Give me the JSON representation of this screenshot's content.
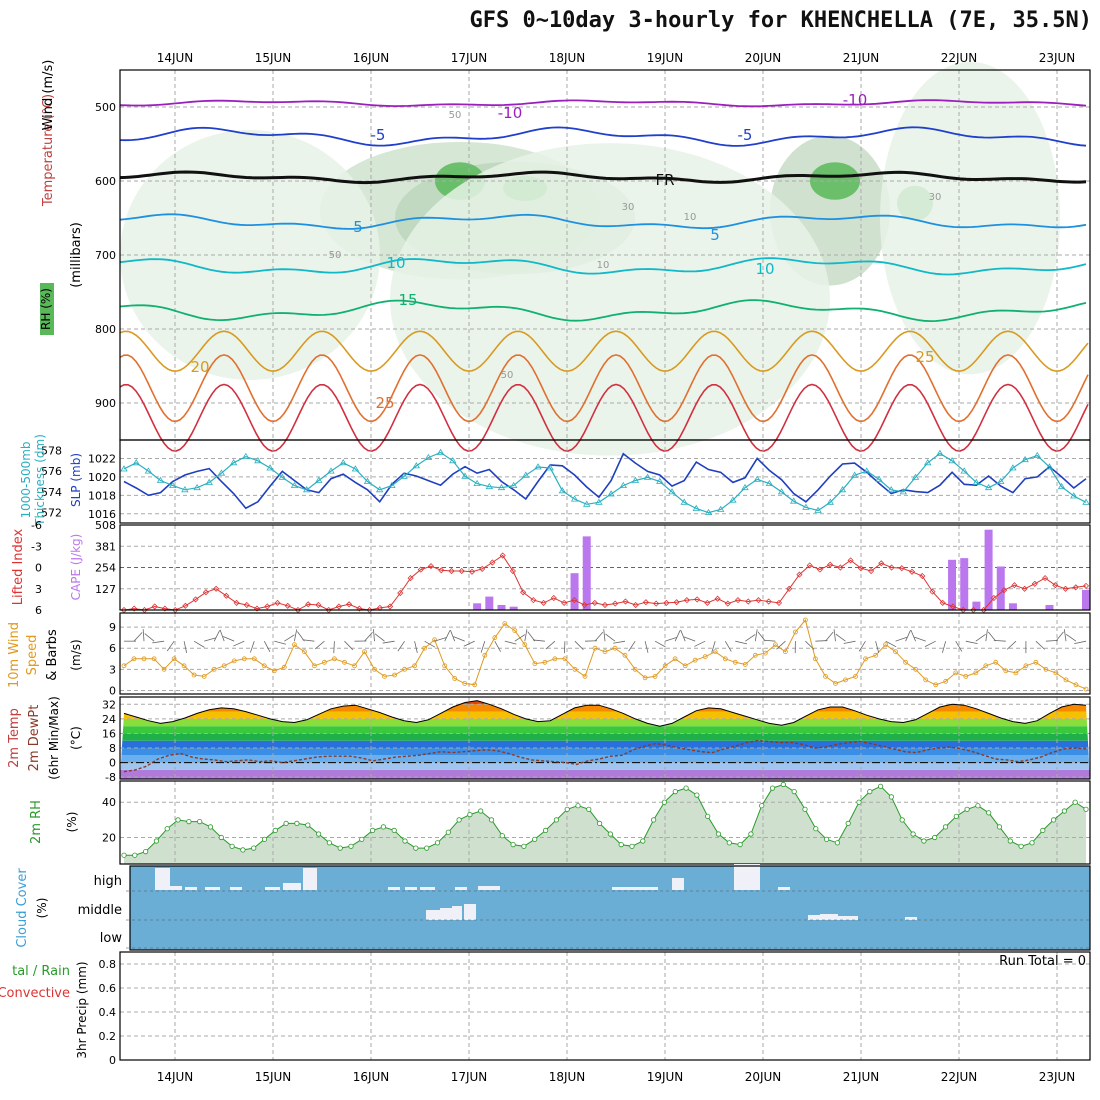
{
  "title": "GFS 0~10day 3-hourly for KHENCHELLA (7E, 35.5N)",
  "dates": [
    "14JUN",
    "15JUN",
    "16JUN",
    "17JUN",
    "18JUN",
    "19JUN",
    "20JUN",
    "21JUN",
    "22JUN",
    "23JUN"
  ],
  "colors": {
    "grid": "#aaaaaa",
    "rh_green": "#59b959",
    "rh_light": "#e6f2e6",
    "slp": "#1f3fbf",
    "thickness": "#2ab0c0",
    "lifted_index": "#dd3333",
    "cape": "#bb77ee",
    "wind_speed": "#e09a20",
    "rh2m": "#2a9a2a",
    "cloud_bg": "#6aaed6",
    "cloud_fill": "#f0f0f8"
  },
  "chart_data": [
    {
      "panel": "upper-air",
      "type": "contour",
      "ylabel": [
        "Temperature (°C)",
        "Wind (m/s)",
        "RH (%)",
        "(millibars)"
      ],
      "yticks": [
        500,
        600,
        700,
        800,
        900
      ],
      "ylim": [
        450,
        950
      ],
      "contour_labels": [
        "-10",
        "-10",
        "-5",
        "-5",
        "FR",
        "5",
        "5",
        "10",
        "10",
        "15",
        "20",
        "25",
        "25",
        "50",
        "50",
        "30",
        "30",
        "10",
        "10",
        "50"
      ],
      "isotherms": [
        {
          "name": "-10",
          "color": "#9b1fbf",
          "mean_level": 495,
          "amp": 5,
          "phase": 0
        },
        {
          "name": "-5",
          "color": "#2040cc",
          "mean_level": 540,
          "amp": 14,
          "phase": 1
        },
        {
          "name": "FR",
          "color": "#111111",
          "mean_level": 595,
          "amp": 8,
          "phase": 2
        },
        {
          "name": "5",
          "color": "#1e90e0",
          "mean_level": 655,
          "amp": 12,
          "phase": 3
        },
        {
          "name": "10",
          "color": "#10b8c8",
          "mean_level": 715,
          "amp": 14,
          "phase": 4
        },
        {
          "name": "15",
          "color": "#10b070",
          "mean_level": 775,
          "amp": 16,
          "phase": 5
        }
      ]
    },
    {
      "panel": "slp-thickness",
      "type": "line",
      "ylabel_left": [
        "1000-500mb",
        "Thickness (dm)"
      ],
      "ylabel_right": "SLP (mb)",
      "yticks_left": [
        572,
        574,
        576,
        578
      ],
      "yticks_right": [
        1016,
        1018,
        1020,
        1022
      ],
      "ylim_right": [
        1015,
        1024
      ],
      "ylim_left": [
        571,
        579
      ],
      "x": [
        0,
        1,
        2,
        3,
        4,
        5,
        6,
        7,
        8,
        9,
        10,
        11,
        12,
        13,
        14,
        15,
        16,
        17,
        18,
        19,
        20,
        21,
        22,
        23,
        24,
        25,
        26,
        27,
        28,
        29,
        30,
        31,
        32,
        33,
        34,
        35,
        36,
        37,
        38,
        39,
        40,
        41,
        42,
        43,
        44,
        45,
        46,
        47,
        48,
        49,
        50,
        51,
        52,
        53,
        54,
        55,
        56,
        57,
        58,
        59,
        60,
        61,
        62,
        63,
        64,
        65,
        66,
        67,
        68,
        69,
        70,
        71,
        72,
        73,
        74,
        75,
        76,
        77,
        78,
        79
      ],
      "series": [
        {
          "name": "SLP (mb)",
          "values": [
            1019.5,
            1018.8,
            1018.0,
            1018.3,
            1019.5,
            1020.2,
            1020.6,
            1020.9,
            1019.5,
            1018.2,
            1016.6,
            1017.3,
            1019.0,
            1020.6,
            1019.6,
            1018.6,
            1018.3,
            1019.8,
            1020.3,
            1019.4,
            1018.6,
            1017.3,
            1019.2,
            1020.4,
            1020.1,
            1019.6,
            1019.1,
            1020.3,
            1021.1,
            1020.4,
            1020.8,
            1019.5,
            1018.6,
            1017.6,
            1019.5,
            1021.3,
            1021.2,
            1020.2,
            1018.9,
            1017.8,
            1019.6,
            1022.5,
            1021.5,
            1020.6,
            1020.2,
            1019.0,
            1019.6,
            1021.6,
            1020.8,
            1020.5,
            1019.4,
            1019.9,
            1022.0,
            1020.7,
            1019.7,
            1018.2,
            1017.3,
            1018.6,
            1020.1,
            1021.4,
            1021.5,
            1020.5,
            1019.3,
            1018.2,
            1018.6,
            1018.4,
            1018.3,
            1019.1,
            1020.5,
            1019.2,
            1019.1,
            1020.1,
            1019.0,
            1018.3,
            1019.8,
            1020.0,
            1021.1,
            1020.0,
            1018.8,
            1019.8
          ]
        },
        {
          "name": "Thickness (dm)",
          "values": [
            576.2,
            576.8,
            576.0,
            575.1,
            574.6,
            574.2,
            574.4,
            574.9,
            575.8,
            576.8,
            577.4,
            577.0,
            576.3,
            575.4,
            574.6,
            574.2,
            575.1,
            576.0,
            576.8,
            576.2,
            575.0,
            574.2,
            574.6,
            575.5,
            576.5,
            577.3,
            577.8,
            577.0,
            575.5,
            574.8,
            574.5,
            574.4,
            574.6,
            575.6,
            576.4,
            576.3,
            574.1,
            573.3,
            572.8,
            573.0,
            573.8,
            574.6,
            575.1,
            575.4,
            575.0,
            574.0,
            573.0,
            572.4,
            572.0,
            572.3,
            573.2,
            574.4,
            575.2,
            574.8,
            574.0,
            573.1,
            572.5,
            572.2,
            573.0,
            574.2,
            575.6,
            576.0,
            575.2,
            574.2,
            574.0,
            575.4,
            576.8,
            577.7,
            577.0,
            576.0,
            574.9,
            574.4,
            575.0,
            576.3,
            577.1,
            577.5,
            576.4,
            574.5,
            573.6,
            573.0
          ]
        }
      ]
    },
    {
      "panel": "instability",
      "type": "bar",
      "ylabel_left": "Lifted Index",
      "ylabel_right": "CAPE (J/kg)",
      "yticks_left": [
        -6,
        -3,
        0,
        3,
        6
      ],
      "yticks_right": [
        127,
        254,
        381,
        508
      ],
      "ylim_left": [
        6,
        -6
      ],
      "ylim_right": [
        0,
        508
      ],
      "series": [
        {
          "name": "Lifted Index",
          "values": [
            6.0,
            5.8,
            6.0,
            5.5,
            5.8,
            6.0,
            5.4,
            4.5,
            3.5,
            3.0,
            4.0,
            5.0,
            5.3,
            5.8,
            5.5,
            5.0,
            5.4,
            6.0,
            5.2,
            5.3,
            6.0,
            5.5,
            5.2,
            5.8,
            6.0,
            5.7,
            5.5,
            3.6,
            1.5,
            0.3,
            -0.2,
            0.4,
            0.5,
            0.5,
            0.6,
            0.2,
            -0.7,
            -1.7,
            0.5,
            3.5,
            4.6,
            5.0,
            4.3,
            5.0,
            4.6,
            5.3,
            5.0,
            5.3,
            5.1,
            4.8,
            5.3,
            4.9,
            5.1,
            5.0,
            4.9,
            4.6,
            4.5,
            5.0,
            4.4,
            5.1,
            4.6,
            4.8,
            4.6,
            4.8,
            5.0,
            3.0,
            1.0,
            -0.3,
            0.3,
            -0.4,
            0.0,
            -1.0,
            0.1,
            0.5,
            -0.6,
            0.0,
            0.1,
            0.6,
            1.2,
            3.4,
            5.0,
            5.5,
            6.0,
            6.0,
            6.0,
            4.3,
            3.2,
            2.5,
            3.0,
            2.3,
            1.5,
            2.5,
            3.0,
            2.8,
            2.6
          ]
        },
        {
          "name": "CAPE (J/kg)",
          "x": [
            29,
            30,
            31,
            32,
            37,
            38,
            68,
            69,
            70,
            71,
            72,
            73,
            76,
            79
          ],
          "values": [
            40,
            80,
            30,
            20,
            220,
            440,
            300,
            310,
            50,
            480,
            260,
            40,
            30,
            120
          ]
        }
      ]
    },
    {
      "panel": "wind10m",
      "type": "line",
      "ylabel": [
        "10m Wind",
        "Speed",
        "& Barbs",
        "(m/s)"
      ],
      "yticks": [
        0,
        3,
        6,
        9
      ],
      "ylim": [
        -0.5,
        11
      ],
      "series": [
        {
          "name": "Speed",
          "values": [
            3.5,
            4.5,
            4.5,
            4.5,
            3.0,
            4.5,
            3.5,
            2.2,
            2.0,
            3.0,
            3.5,
            4.2,
            4.5,
            4.5,
            3.5,
            2.8,
            3.3,
            6.5,
            5.5,
            3.5,
            4.0,
            4.5,
            4.0,
            3.5,
            5.5,
            3.0,
            2.0,
            2.2,
            3.0,
            3.5,
            6.0,
            7.2,
            3.5,
            1.7,
            1.0,
            0.8,
            5.0,
            7.5,
            9.5,
            8.5,
            6.5,
            3.8,
            4.0,
            4.5,
            4.5,
            3.0,
            2.0,
            6.0,
            5.5,
            6.0,
            5.0,
            3.0,
            1.8,
            2.0,
            3.5,
            4.5,
            3.5,
            4.3,
            4.8,
            5.5,
            4.5,
            4.0,
            3.7,
            5.0,
            5.3,
            6.5,
            5.5,
            8.3,
            10.0,
            4.5,
            2.0,
            1.0,
            1.5,
            2.0,
            4.5,
            5.0,
            6.5,
            5.5,
            4.0,
            3.0,
            1.5,
            0.8,
            1.3,
            2.5,
            2.0,
            2.5,
            3.5,
            4.0,
            2.8,
            2.5,
            3.5,
            4.0,
            3.0,
            2.5,
            1.5,
            0.8,
            0.2
          ]
        }
      ]
    },
    {
      "panel": "temperature2m",
      "type": "area",
      "ylabel": [
        "2m Temp",
        "2m DewPt",
        "(6hr Min/Max)",
        "(°C)"
      ],
      "yticks": [
        -8,
        0,
        8,
        16,
        24,
        32
      ],
      "ylim": [
        -9,
        36
      ],
      "series": [
        {
          "name": "2m Temp",
          "values": [
            27.0,
            25.0,
            23.0,
            21.5,
            22.5,
            24.5,
            27.0,
            29.0,
            30.0,
            29.5,
            28.0,
            26.0,
            24.0,
            22.5,
            22.0,
            23.5,
            26.5,
            29.5,
            31.0,
            31.5,
            29.5,
            27.5,
            25.0,
            23.0,
            22.0,
            23.5,
            27.0,
            30.5,
            33.0,
            34.0,
            32.0,
            29.5,
            26.5,
            24.0,
            22.5,
            23.0,
            26.5,
            30.0,
            31.5,
            31.5,
            29.5,
            27.0,
            24.0,
            21.5,
            20.0,
            21.5,
            25.0,
            28.5,
            30.0,
            29.5,
            27.5,
            25.5,
            23.5,
            21.5,
            20.5,
            22.0,
            25.5,
            29.0,
            30.5,
            30.5,
            28.5,
            26.0,
            24.0,
            22.5,
            22.0,
            23.5,
            27.0,
            30.5,
            32.0,
            31.5,
            29.5,
            27.0,
            24.5,
            22.5,
            21.5,
            23.0,
            27.0,
            30.5,
            32.0,
            31.5
          ]
        },
        {
          "name": "2m DewPt",
          "values": [
            -5.0,
            -4.0,
            -2.0,
            2.0,
            4.0,
            5.0,
            3.0,
            2.0,
            1.5,
            0.5,
            1.0,
            1.5,
            0.5,
            1.0,
            0.0,
            1.0,
            2.0,
            3.0,
            3.5,
            3.5,
            3.5,
            2.5,
            1.0,
            2.0,
            3.0,
            3.5,
            4.0,
            5.0,
            6.0,
            5.5,
            6.0,
            6.5,
            7.0,
            6.5,
            5.0,
            3.0,
            1.5,
            1.0,
            0.5,
            0.0,
            -1.0,
            1.0,
            2.0,
            3.5,
            4.0,
            7.0,
            9.0,
            10.5,
            9.5,
            8.0,
            7.0,
            6.0,
            5.5,
            7.5,
            9.0,
            11.0,
            12.0,
            11.5,
            11.0,
            11.0,
            10.0,
            8.0,
            8.5,
            10.0,
            11.0,
            11.5,
            10.5,
            9.0,
            7.5,
            6.0,
            5.5,
            7.0,
            8.0,
            8.5,
            7.5,
            6.0,
            4.0,
            2.0,
            1.5,
            0.5,
            1.5,
            3.0,
            5.5,
            7.5,
            8.0,
            7.5
          ]
        }
      ]
    },
    {
      "panel": "rh2m",
      "type": "area",
      "ylabel": [
        "2m RH",
        "(%)"
      ],
      "yticks": [
        20,
        40
      ],
      "ylim": [
        5,
        52
      ],
      "series": [
        {
          "name": "2m RH",
          "values": [
            10,
            10,
            12,
            18,
            25,
            30,
            29,
            29,
            26,
            20,
            15,
            13,
            14,
            19,
            24,
            28,
            28,
            27,
            22,
            17,
            14,
            15,
            19,
            24,
            26,
            24,
            18,
            14,
            14,
            17,
            23,
            30,
            33,
            35,
            30,
            21,
            16,
            15,
            19,
            24,
            30,
            36,
            38,
            36,
            28,
            22,
            16,
            15,
            18,
            30,
            40,
            46,
            48,
            44,
            32,
            22,
            17,
            16,
            22,
            38,
            48,
            50,
            46,
            36,
            25,
            19,
            17,
            28,
            40,
            46,
            49,
            43,
            30,
            22,
            18,
            20,
            26,
            32,
            36,
            38,
            34,
            26,
            18,
            15,
            17,
            24,
            30,
            35,
            40,
            36
          ]
        }
      ]
    },
    {
      "panel": "cloud",
      "type": "heatmap",
      "ylabel": [
        "Cloud Cover",
        "(%)"
      ],
      "levels": [
        "high",
        "middle",
        "low"
      ]
    },
    {
      "panel": "precip",
      "type": "bar",
      "ylabel": [
        "3hr Precip (mm)"
      ],
      "legend_left": [
        "tal / Rain",
        "Convective"
      ],
      "annotation": "Run Total = 0",
      "yticks": [
        "0",
        "0.2",
        "0.4",
        "0.6",
        "0.8"
      ],
      "ylim": [
        0,
        0.9
      ],
      "values": []
    }
  ]
}
